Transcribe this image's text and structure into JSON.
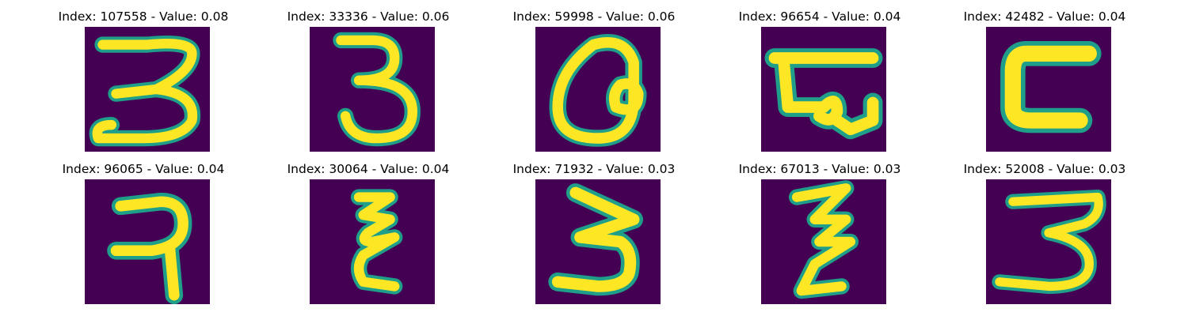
{
  "colors": {
    "background": "#440154",
    "edge": "#1f9e89",
    "mid": "#35b779",
    "stroke": "#fde725"
  },
  "panels": [
    {
      "title": "Index: 107558 - Value: 0.08",
      "glyph": "digit-3-icon"
    },
    {
      "title": "Index: 33336 - Value: 0.06",
      "glyph": "digit-3-icon"
    },
    {
      "title": "Index: 59998 - Value: 0.06",
      "glyph": "loop-glyph-icon"
    },
    {
      "title": "Index: 96654 - Value: 0.04",
      "glyph": "flag-glyph-icon"
    },
    {
      "title": "Index: 42482 - Value: 0.04",
      "glyph": "c-glyph-icon"
    },
    {
      "title": "Index: 96065 - Value: 0.04",
      "glyph": "seven-glyph-icon"
    },
    {
      "title": "Index: 30064 - Value: 0.04",
      "glyph": "zigzag-glyph-icon"
    },
    {
      "title": "Index: 71932 - Value: 0.03",
      "glyph": "digit-3-icon"
    },
    {
      "title": "Index: 67013 - Value: 0.03",
      "glyph": "zigzag-glyph-icon"
    },
    {
      "title": "Index: 52008 - Value: 0.03",
      "glyph": "digit-3-icon"
    }
  ]
}
